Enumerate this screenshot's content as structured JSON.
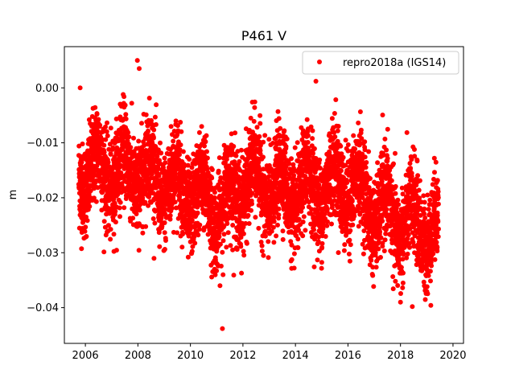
{
  "chart_data": {
    "type": "scatter",
    "title": "P461 V",
    "xlabel": "",
    "ylabel": "m",
    "xlim": [
      2005.2,
      2020.4
    ],
    "ylim": [
      -0.0465,
      0.0075
    ],
    "x_ticks": [
      2006,
      2008,
      2010,
      2012,
      2014,
      2016,
      2018,
      2020
    ],
    "x_tick_labels": [
      "2006",
      "2008",
      "2010",
      "2012",
      "2014",
      "2016",
      "2018",
      "2020"
    ],
    "y_ticks": [
      0.0,
      -0.01,
      -0.02,
      -0.03,
      -0.04
    ],
    "y_tick_labels": [
      "0.00",
      "−0.01",
      "−0.02",
      "−0.03",
      "−0.04"
    ],
    "grid": false,
    "legend_position": "top-right",
    "series": [
      {
        "name": "repro2018a (IGS14)",
        "color": "#ff0000",
        "marker": "circle",
        "x_range": [
          2005.75,
          2019.45
        ],
        "trend": [
          {
            "x": 2006.0,
            "y": -0.015
          },
          {
            "x": 2008.0,
            "y": -0.015
          },
          {
            "x": 2010.0,
            "y": -0.019
          },
          {
            "x": 2011.3,
            "y": -0.022
          },
          {
            "x": 2012.0,
            "y": -0.017
          },
          {
            "x": 2014.0,
            "y": -0.019
          },
          {
            "x": 2016.0,
            "y": -0.017
          },
          {
            "x": 2017.0,
            "y": -0.022
          },
          {
            "x": 2018.0,
            "y": -0.024
          },
          {
            "x": 2019.45,
            "y": -0.026
          }
        ],
        "notable_points": [
          {
            "x": 2005.8,
            "y": 0.0
          },
          {
            "x": 2007.98,
            "y": 0.005
          },
          {
            "x": 2008.05,
            "y": 0.0035
          },
          {
            "x": 2014.78,
            "y": 0.0012
          },
          {
            "x": 2011.22,
            "y": -0.0438
          },
          {
            "x": 2018.45,
            "y": -0.0398
          },
          {
            "x": 2018.0,
            "y": -0.039
          }
        ]
      }
    ]
  }
}
